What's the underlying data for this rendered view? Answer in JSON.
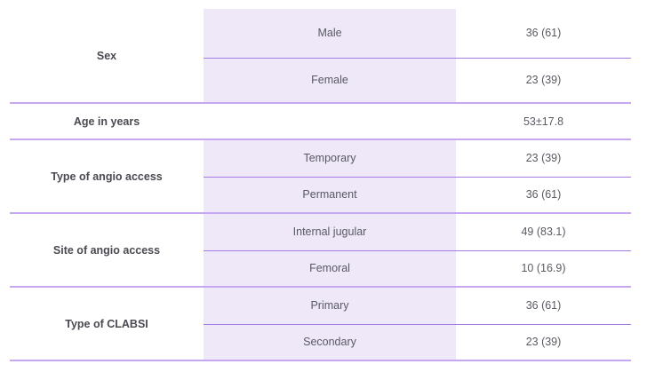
{
  "table": {
    "groups": [
      {
        "label": "Sex",
        "rows": [
          {
            "sub": "Male",
            "value": "36 (61)"
          },
          {
            "sub": "Female",
            "value": "23 (39)"
          }
        ]
      },
      {
        "label": "Age in years",
        "rows": [
          {
            "sub": "",
            "value": "53±17.8"
          }
        ]
      },
      {
        "label": "Type of angio access",
        "rows": [
          {
            "sub": "Temporary",
            "value": "23 (39)"
          },
          {
            "sub": "Permanent",
            "value": "36 (61)"
          }
        ]
      },
      {
        "label": "Site of angio access",
        "rows": [
          {
            "sub": "Internal jugular",
            "value": "49 (83.1)"
          },
          {
            "sub": "Femoral",
            "value": "10 (16.9)"
          }
        ]
      },
      {
        "label": "Type of CLABSI",
        "rows": [
          {
            "sub": "Primary",
            "value": "36 (61)"
          },
          {
            "sub": "Secondary",
            "value": "23 (39)"
          }
        ]
      }
    ]
  },
  "colors": {
    "accent_line": "#a57ce3",
    "sub_column_bg": "#eee8f9"
  }
}
